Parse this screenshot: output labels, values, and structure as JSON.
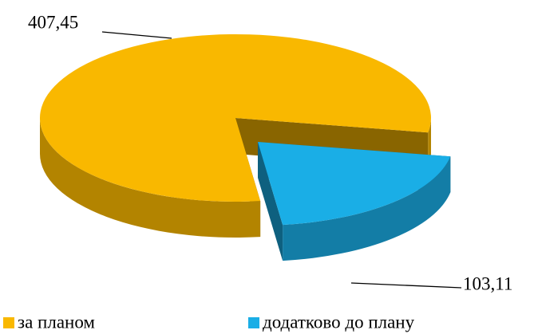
{
  "chart_data": {
    "type": "pie",
    "subtype": "3d-exploded",
    "categories": [
      "за планом",
      "додатково до плану"
    ],
    "values": [
      407.45,
      103.11
    ],
    "value_labels": [
      "407,45",
      "103,11"
    ],
    "colors": [
      "#f9b800",
      "#1aaee6"
    ],
    "legend": "bottom"
  }
}
